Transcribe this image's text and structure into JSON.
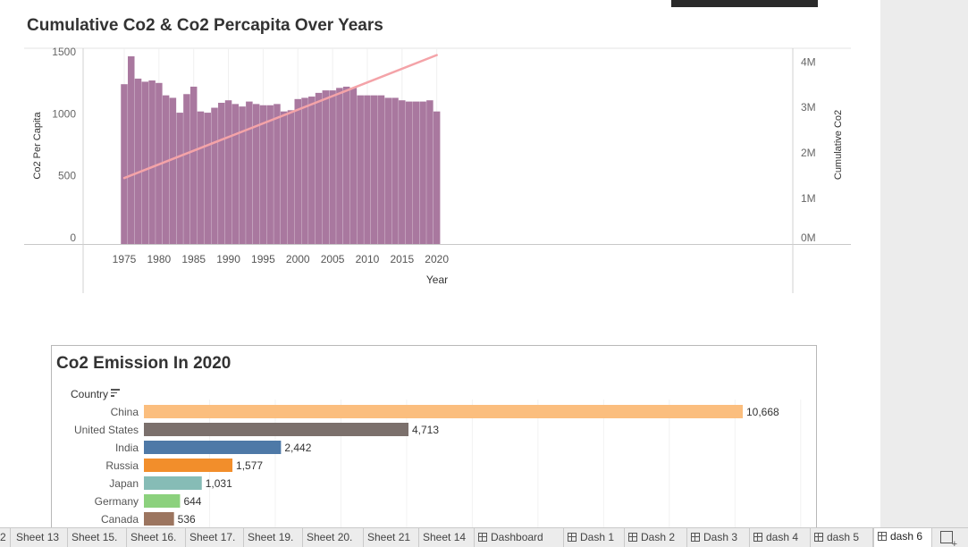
{
  "chart_data": [
    {
      "type": "bar",
      "title": "Cumulative Co2 & Co2 Percapita Over Years",
      "xlabel": "Year",
      "ylabel": "Co2 Per Capita",
      "y2label": "Cumulative Co2",
      "ylim": [
        0,
        1580
      ],
      "y2lim": [
        0,
        4.3
      ],
      "yticks": [
        0,
        500,
        1000,
        1500
      ],
      "y2ticks": [
        "0M",
        "1M",
        "2M",
        "3M",
        "4M"
      ],
      "xticks": [
        1975,
        1980,
        1985,
        1990,
        1995,
        2000,
        2005,
        2010,
        2015,
        2020
      ],
      "x": [
        1975,
        1976,
        1977,
        1978,
        1979,
        1980,
        1981,
        1982,
        1983,
        1984,
        1985,
        1986,
        1987,
        1988,
        1989,
        1990,
        1991,
        1992,
        1993,
        1994,
        1995,
        1996,
        1997,
        1998,
        1999,
        2000,
        2001,
        2002,
        2003,
        2004,
        2005,
        2006,
        2007,
        2008,
        2009,
        2010,
        2011,
        2012,
        2013,
        2014,
        2015,
        2016,
        2017,
        2018,
        2019,
        2020
      ],
      "series": [
        {
          "type": "bar",
          "axis": "left",
          "color": "#a9789f",
          "values": [
            1290,
            1515,
            1335,
            1310,
            1320,
            1300,
            1200,
            1180,
            1060,
            1210,
            1270,
            1070,
            1060,
            1100,
            1140,
            1160,
            1130,
            1110,
            1150,
            1130,
            1120,
            1120,
            1130,
            1070,
            1080,
            1170,
            1180,
            1190,
            1220,
            1240,
            1240,
            1260,
            1270,
            1260,
            1200,
            1200,
            1200,
            1200,
            1180,
            1180,
            1160,
            1150,
            1150,
            1150,
            1160,
            1070
          ]
        },
        {
          "type": "line",
          "axis": "right",
          "color": "#f4a3a8",
          "x": [
            1975,
            2020
          ],
          "values": [
            1.45,
            4.15
          ]
        }
      ],
      "grid": true
    },
    {
      "type": "bar",
      "orientation": "horizontal",
      "title": "Co2 Emission In 2020",
      "ylabel": "Country",
      "xlim": [
        0,
        11000
      ],
      "categories": [
        "China",
        "United States",
        "India",
        "Russia",
        "Japan",
        "Germany",
        "Canada"
      ],
      "values": [
        10668,
        4713,
        2442,
        1577,
        1031,
        644,
        536
      ],
      "value_labels": [
        "10,668",
        "4,713",
        "2,442",
        "1,577",
        "1,031",
        "644",
        "536"
      ],
      "colors": [
        "#fbbe7e",
        "#7b706c",
        "#4e79a7",
        "#f28e2b",
        "#86bcb6",
        "#8cd17d",
        "#9c755f"
      ]
    }
  ],
  "tabs": [
    {
      "label": "2",
      "type": "sheet"
    },
    {
      "label": "Sheet 13",
      "type": "sheet"
    },
    {
      "label": "Sheet 15.",
      "type": "sheet"
    },
    {
      "label": "Sheet 16.",
      "type": "sheet"
    },
    {
      "label": "Sheet 17.",
      "type": "sheet"
    },
    {
      "label": "Sheet 19.",
      "type": "sheet"
    },
    {
      "label": "Sheet 20.",
      "type": "sheet"
    },
    {
      "label": "Sheet 21",
      "type": "sheet"
    },
    {
      "label": "Sheet 14",
      "type": "sheet"
    },
    {
      "label": "Dashboard",
      "type": "dashboard"
    },
    {
      "label": "Dash 1",
      "type": "dashboard"
    },
    {
      "label": "Dash 2",
      "type": "dashboard"
    },
    {
      "label": "Dash 3",
      "type": "dashboard"
    },
    {
      "label": "dash 4",
      "type": "dashboard"
    },
    {
      "label": "dash 5",
      "type": "dashboard"
    },
    {
      "label": "dash 6",
      "type": "dashboard",
      "active": true
    }
  ]
}
